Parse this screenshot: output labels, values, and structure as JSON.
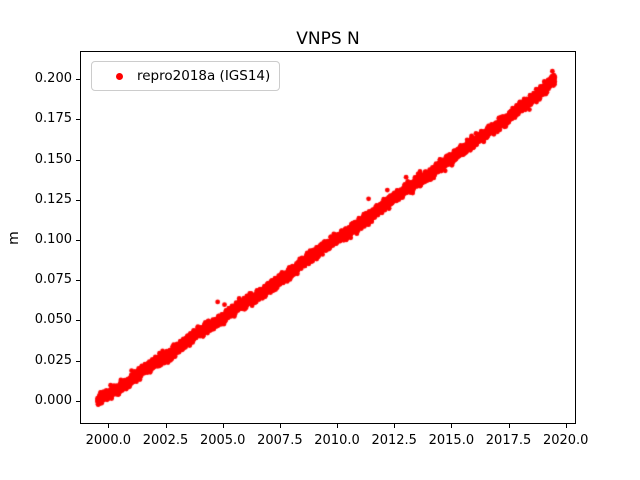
{
  "figure": {
    "title": "VNPS N"
  },
  "chart_data": {
    "type": "scatter",
    "title": "VNPS N",
    "xlabel": "",
    "ylabel": "m",
    "grid": false,
    "xlim": [
      1998.76,
      2020.45
    ],
    "ylim": [
      -0.0143,
      0.2174
    ],
    "x_ticks": [
      2000.0,
      2002.5,
      2005.0,
      2007.5,
      2010.0,
      2012.5,
      2015.0,
      2017.5,
      2020.0
    ],
    "x_tick_labels": [
      "2000.0",
      "2002.5",
      "2005.0",
      "2007.5",
      "2010.0",
      "2012.5",
      "2015.0",
      "2017.5",
      "2020.0"
    ],
    "y_ticks": [
      0.0,
      0.025,
      0.05,
      0.075,
      0.1,
      0.125,
      0.15,
      0.175,
      0.2
    ],
    "y_tick_labels": [
      "0.000",
      "0.025",
      "0.050",
      "0.075",
      "0.100",
      "0.125",
      "0.150",
      "0.175",
      "0.200"
    ],
    "legend": {
      "position": "upper left",
      "entries": [
        {
          "label": "repro2018a (IGS14)",
          "color": "#ff0000",
          "marker": "dot"
        }
      ]
    },
    "series": [
      {
        "name": "repro2018a (IGS14)",
        "color": "#ff0000",
        "marker": "dot",
        "marker_radius_px": 2.4,
        "x_start": 1999.53,
        "x_end": 2019.52,
        "approx_point_count": 7300,
        "noise_sigma_m": 0.0012,
        "trend_points": [
          [
            1999.53,
            0.0005
          ],
          [
            2000.0,
            0.004
          ],
          [
            2000.5,
            0.008
          ],
          [
            2001.0,
            0.013
          ],
          [
            2001.5,
            0.019
          ],
          [
            2002.0,
            0.023
          ],
          [
            2002.5,
            0.027
          ],
          [
            2003.0,
            0.032
          ],
          [
            2003.5,
            0.038
          ],
          [
            2004.0,
            0.043
          ],
          [
            2004.5,
            0.047
          ],
          [
            2005.0,
            0.051
          ],
          [
            2005.5,
            0.057
          ],
          [
            2006.0,
            0.061
          ],
          [
            2006.5,
            0.065
          ],
          [
            2007.0,
            0.07
          ],
          [
            2007.5,
            0.075
          ],
          [
            2008.0,
            0.08
          ],
          [
            2008.5,
            0.086
          ],
          [
            2009.0,
            0.091
          ],
          [
            2009.5,
            0.096
          ],
          [
            2010.0,
            0.101
          ],
          [
            2010.5,
            0.105
          ],
          [
            2011.0,
            0.11
          ],
          [
            2011.5,
            0.115
          ],
          [
            2012.0,
            0.121
          ],
          [
            2012.5,
            0.126
          ],
          [
            2013.0,
            0.131
          ],
          [
            2013.5,
            0.136
          ],
          [
            2014.0,
            0.14
          ],
          [
            2014.5,
            0.146
          ],
          [
            2015.0,
            0.151
          ],
          [
            2015.5,
            0.156
          ],
          [
            2016.0,
            0.161
          ],
          [
            2016.5,
            0.166
          ],
          [
            2017.0,
            0.171
          ],
          [
            2017.5,
            0.176
          ],
          [
            2018.0,
            0.182
          ],
          [
            2018.5,
            0.187
          ],
          [
            2019.0,
            0.193
          ],
          [
            2019.3,
            0.198
          ],
          [
            2019.52,
            0.2
          ]
        ],
        "outliers": [
          [
            2004.78,
            0.0615
          ],
          [
            2005.08,
            0.0598
          ],
          [
            2011.38,
            0.1256
          ],
          [
            2012.2,
            0.131
          ],
          [
            2013.02,
            0.139
          ]
        ]
      }
    ]
  }
}
